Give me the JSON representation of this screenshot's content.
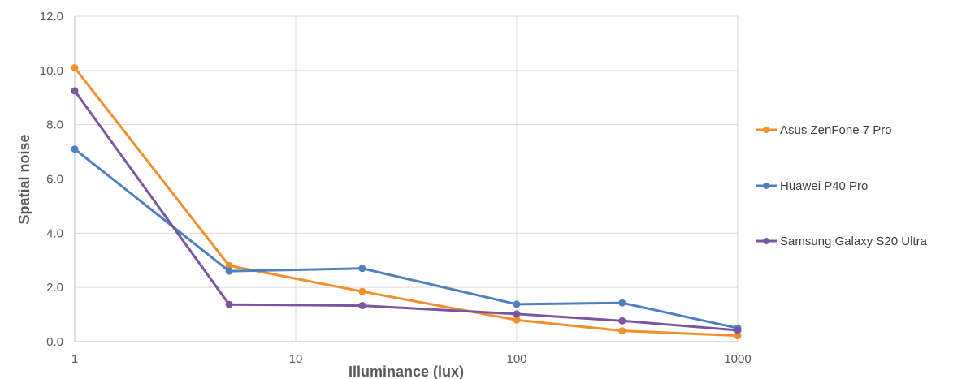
{
  "chart_data": {
    "type": "line",
    "xlabel": "Illuminance (lux)",
    "ylabel": "Spatial noise",
    "xscale": "log",
    "xlim": [
      1,
      1000
    ],
    "ylim": [
      0,
      12
    ],
    "xticks": [
      "1",
      "10",
      "100",
      "1000"
    ],
    "yticks": [
      "0.0",
      "2.0",
      "4.0",
      "6.0",
      "8.0",
      "10.0",
      "12.0"
    ],
    "grid": true,
    "legend_position": "right",
    "series": [
      {
        "name": "Asus ZenFone 7 Pro",
        "color": "#f28e2b",
        "x": [
          1,
          5,
          20,
          100,
          300,
          1000
        ],
        "y": [
          10.1,
          2.8,
          1.85,
          0.8,
          0.4,
          0.22
        ]
      },
      {
        "name": "Huawei P40 Pro",
        "color": "#4e7fbf",
        "x": [
          1,
          5,
          20,
          100,
          300,
          1000
        ],
        "y": [
          7.1,
          2.6,
          2.7,
          1.38,
          1.43,
          0.5
        ]
      },
      {
        "name": "Samsung Galaxy S20 Ultra",
        "color": "#7a56a0",
        "x": [
          1,
          5,
          20,
          100,
          300,
          1000
        ],
        "y": [
          9.25,
          1.37,
          1.33,
          1.02,
          0.77,
          0.42
        ]
      }
    ]
  }
}
